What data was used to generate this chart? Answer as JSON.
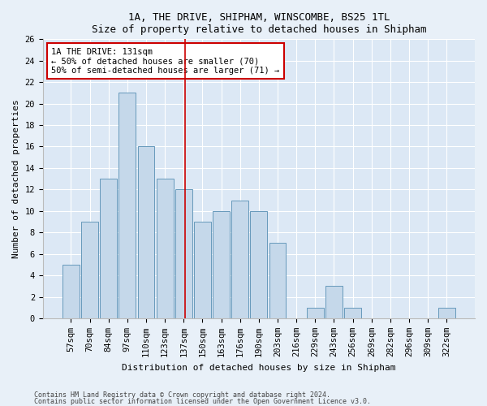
{
  "title1": "1A, THE DRIVE, SHIPHAM, WINSCOMBE, BS25 1TL",
  "title2": "Size of property relative to detached houses in Shipham",
  "xlabel": "Distribution of detached houses by size in Shipham",
  "ylabel": "Number of detached properties",
  "categories": [
    "57sqm",
    "70sqm",
    "84sqm",
    "97sqm",
    "110sqm",
    "123sqm",
    "137sqm",
    "150sqm",
    "163sqm",
    "176sqm",
    "190sqm",
    "203sqm",
    "216sqm",
    "229sqm",
    "243sqm",
    "256sqm",
    "269sqm",
    "282sqm",
    "296sqm",
    "309sqm",
    "322sqm"
  ],
  "values": [
    5,
    9,
    13,
    21,
    16,
    13,
    12,
    9,
    10,
    11,
    10,
    7,
    0,
    1,
    3,
    1,
    0,
    0,
    0,
    0,
    1
  ],
  "bar_color": "#c5d8ea",
  "bar_edge_color": "#6699bb",
  "ylim": [
    0,
    26
  ],
  "yticks": [
    0,
    2,
    4,
    6,
    8,
    10,
    12,
    14,
    16,
    18,
    20,
    22,
    24,
    26
  ],
  "red_line_x": 6.07,
  "annotation_text": "1A THE DRIVE: 131sqm\n← 50% of detached houses are smaller (70)\n50% of semi-detached houses are larger (71) →",
  "annotation_box_color": "#ffffff",
  "annotation_box_edge_color": "#cc0000",
  "red_line_color": "#cc0000",
  "footnote1": "Contains HM Land Registry data © Crown copyright and database right 2024.",
  "footnote2": "Contains public sector information licensed under the Open Government Licence v3.0.",
  "background_color": "#e8f0f8",
  "plot_bg_color": "#dce8f5",
  "title_fontsize": 9,
  "tick_fontsize": 7.5,
  "ylabel_fontsize": 8,
  "xlabel_fontsize": 8
}
